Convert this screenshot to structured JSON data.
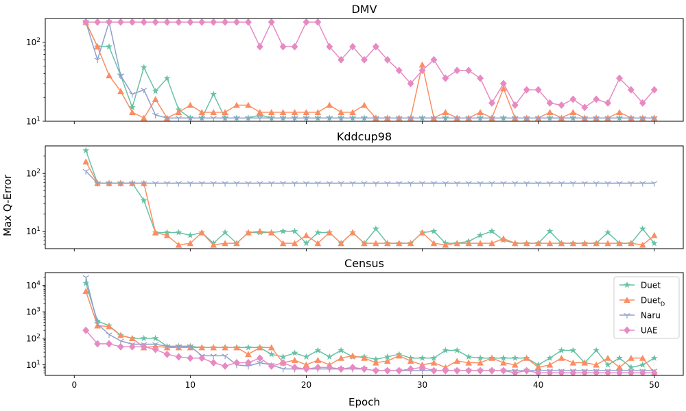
{
  "chart_data": [
    {
      "type": "line",
      "title": "DMV",
      "yscale": "log",
      "ylim": [
        10,
        200
      ],
      "xlim": [
        -2.5,
        52.5
      ],
      "yticks": [
        {
          "value": 10,
          "base": "10",
          "exp": "1"
        },
        {
          "value": 100,
          "base": "10",
          "exp": "2"
        }
      ],
      "series": [
        {
          "name": "Duet",
          "values": [
            180,
            88,
            88,
            38,
            15,
            48,
            24,
            35,
            14,
            11,
            11,
            22,
            11,
            11,
            11,
            12,
            11,
            11,
            11,
            11,
            11,
            11,
            11,
            11,
            11,
            11,
            11,
            11,
            11,
            11,
            11,
            11,
            11,
            11,
            11,
            11,
            11,
            11,
            11,
            11,
            11,
            11,
            11,
            11,
            11,
            11,
            11,
            11,
            11,
            11
          ]
        },
        {
          "name": "DuetD",
          "values": [
            180,
            88,
            38,
            24,
            13,
            11,
            19,
            11,
            13,
            16,
            13,
            13,
            13,
            16,
            16,
            13,
            13,
            13,
            13,
            13,
            13,
            16,
            13,
            13,
            16,
            11,
            11,
            11,
            11,
            52,
            11,
            13,
            11,
            11,
            13,
            11,
            26,
            11,
            11,
            11,
            13,
            11,
            13,
            11,
            11,
            11,
            13,
            11,
            11,
            11
          ]
        },
        {
          "name": "Naru",
          "values": [
            180,
            60,
            180,
            38,
            22,
            25,
            12,
            11,
            11,
            11,
            11,
            11,
            11,
            11,
            11,
            11,
            11,
            11,
            11,
            11,
            11,
            11,
            11,
            11,
            11,
            11,
            11,
            11,
            11,
            11,
            11,
            11,
            11,
            11,
            11,
            11,
            11,
            11,
            11,
            11,
            11,
            11,
            11,
            11,
            11,
            11,
            11,
            11,
            11,
            11
          ]
        },
        {
          "name": "UAE",
          "values": [
            180,
            180,
            180,
            180,
            180,
            180,
            180,
            180,
            180,
            180,
            180,
            180,
            180,
            180,
            180,
            88,
            180,
            88,
            88,
            180,
            180,
            88,
            60,
            88,
            60,
            88,
            60,
            44,
            30,
            44,
            60,
            35,
            44,
            44,
            35,
            17,
            30,
            16,
            25,
            25,
            17,
            16,
            19,
            15,
            19,
            17,
            35,
            25,
            17,
            25
          ]
        }
      ]
    },
    {
      "type": "line",
      "title": "Kddcup98",
      "yscale": "log",
      "ylim": [
        5,
        300
      ],
      "xlim": [
        -2.5,
        52.5
      ],
      "yticks": [
        {
          "value": 10,
          "base": "10",
          "exp": "1"
        },
        {
          "value": 100,
          "base": "10",
          "exp": "2"
        }
      ],
      "series": [
        {
          "name": "Duet",
          "values": [
            250,
            68,
            68,
            68,
            68,
            34,
            9.5,
            9.5,
            9.5,
            8.5,
            9.5,
            6.2,
            9.5,
            6.2,
            9.5,
            9.5,
            9.5,
            10,
            10,
            6.2,
            9.5,
            9.5,
            6.2,
            9.5,
            6.2,
            11,
            6.2,
            6.2,
            6.2,
            9.5,
            10,
            6.2,
            6.2,
            6.7,
            8.5,
            10,
            7,
            6.2,
            6.2,
            6.2,
            10,
            6.2,
            6.2,
            6.2,
            6.2,
            9.5,
            6.2,
            6.2,
            11,
            6.2
          ]
        },
        {
          "name": "DuetD",
          "values": [
            160,
            68,
            68,
            68,
            68,
            68,
            9.5,
            8.5,
            5.8,
            6.2,
            9.5,
            5.8,
            6.2,
            6.2,
            9.5,
            10,
            9.5,
            6.2,
            6.2,
            8.5,
            6.2,
            9.5,
            6.2,
            9.5,
            6.2,
            6.2,
            6.2,
            6.2,
            6.2,
            9.5,
            6.2,
            5.8,
            6.2,
            6.2,
            6.2,
            6.2,
            7.5,
            6.2,
            6.2,
            6.2,
            6.2,
            6.2,
            6.2,
            6.2,
            6.2,
            6.2,
            6.2,
            6.2,
            5.8,
            8.5
          ]
        },
        {
          "name": "Naru",
          "values": [
            110,
            68,
            68,
            68,
            68,
            68,
            68,
            68,
            68,
            68,
            68,
            68,
            68,
            68,
            68,
            68,
            68,
            68,
            68,
            68,
            68,
            68,
            68,
            68,
            68,
            68,
            68,
            68,
            68,
            68,
            68,
            68,
            68,
            68,
            68,
            68,
            68,
            68,
            68,
            68,
            68,
            68,
            68,
            68,
            68,
            68,
            68,
            68,
            68,
            68
          ]
        }
      ]
    },
    {
      "type": "line",
      "title": "Census",
      "yscale": "log",
      "ylim": [
        4,
        30000
      ],
      "xlim": [
        -2.5,
        52.5
      ],
      "xlabel": "Epoch",
      "xticks": [
        "0",
        "10",
        "20",
        "30",
        "40",
        "50"
      ],
      "yticks": [
        {
          "value": 10,
          "base": "10",
          "exp": "1"
        },
        {
          "value": 100,
          "base": "10",
          "exp": "2"
        },
        {
          "value": 1000,
          "base": "10",
          "exp": "3"
        },
        {
          "value": 10000,
          "base": "10",
          "exp": "4"
        }
      ],
      "legend": "top-right",
      "series": [
        {
          "name": "Duet",
          "values": [
            12000,
            450,
            300,
            130,
            100,
            100,
            100,
            50,
            50,
            50,
            45,
            45,
            45,
            45,
            45,
            45,
            25,
            20,
            28,
            20,
            35,
            20,
            35,
            20,
            20,
            16,
            20,
            25,
            18,
            18,
            18,
            35,
            35,
            20,
            18,
            18,
            18,
            18,
            18,
            10,
            18,
            35,
            35,
            12,
            35,
            10,
            18,
            8,
            10,
            18
          ]
        },
        {
          "name": "DuetD",
          "values": [
            6000,
            300,
            280,
            130,
            100,
            45,
            50,
            45,
            45,
            45,
            45,
            45,
            45,
            45,
            25,
            45,
            45,
            12,
            15,
            10,
            15,
            10,
            18,
            22,
            18,
            12,
            14,
            22,
            14,
            10,
            12,
            8,
            14,
            12,
            12,
            18,
            12,
            10,
            18,
            8,
            10,
            18,
            12,
            12,
            10,
            18,
            8,
            18,
            18,
            5
          ]
        },
        {
          "name": "Naru",
          "values": [
            20000,
            350,
            140,
            80,
            60,
            60,
            60,
            50,
            50,
            50,
            22,
            22,
            22,
            10,
            9,
            12,
            10,
            7,
            7,
            7,
            7,
            7,
            7,
            7,
            7,
            6,
            6,
            6,
            6,
            6,
            6,
            6,
            6,
            6,
            6,
            6,
            6,
            6,
            6,
            6,
            6,
            6,
            6,
            6,
            6,
            6,
            6,
            6,
            6,
            6
          ]
        },
        {
          "name": "UAE",
          "values": [
            200,
            62,
            62,
            48,
            48,
            48,
            38,
            25,
            20,
            18,
            18,
            12,
            9,
            12,
            12,
            18,
            9,
            12,
            8,
            7,
            8,
            8,
            7,
            8,
            7,
            6,
            6,
            6,
            7,
            8,
            6,
            6,
            6,
            6,
            6,
            6,
            6,
            5,
            6,
            5,
            5,
            5,
            5,
            5,
            5,
            5,
            5,
            5,
            5,
            5
          ]
        }
      ]
    }
  ],
  "figure": {
    "ylabel": "Max Q-Error"
  },
  "legend": {
    "items": [
      {
        "key": "Duet",
        "label": "Duet",
        "sub": "",
        "color": "#66c2a5",
        "marker": "star"
      },
      {
        "key": "DuetD",
        "label": "Duet",
        "sub": "D",
        "color": "#fc8d62",
        "marker": "triangle"
      },
      {
        "key": "Naru",
        "label": "Naru",
        "sub": "",
        "color": "#8da0cb",
        "marker": "tri"
      },
      {
        "key": "UAE",
        "label": "UAE",
        "sub": "",
        "color": "#e78ac3",
        "marker": "diamond"
      }
    ]
  }
}
